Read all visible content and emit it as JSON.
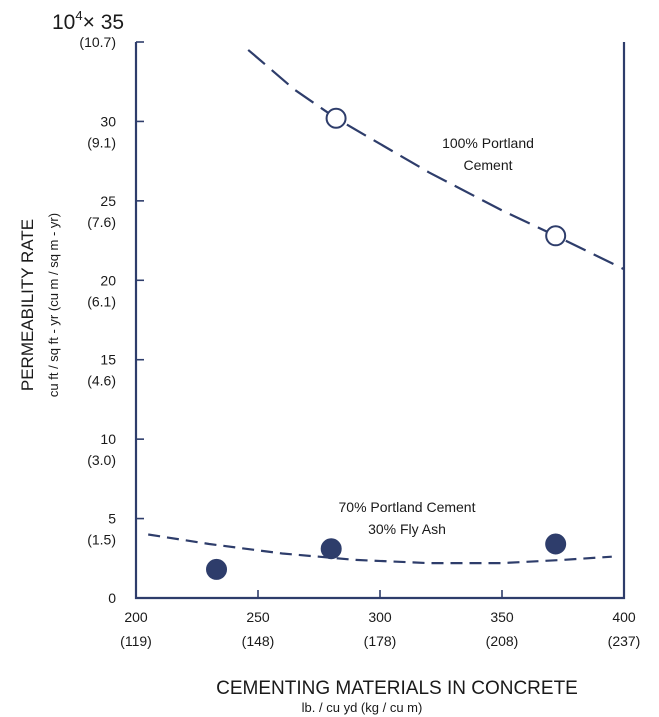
{
  "chart_data": {
    "type": "scatter",
    "multiplier_label": {
      "base": "10",
      "exponent": "4",
      "suffix": "× 35"
    },
    "ylabel": "PERMEABILITY RATE",
    "ylabel_sub": "cu ft / sq ft - yr (cu m / sq m - yr)",
    "xlabel": "CEMENTING MATERIALS IN CONCRETE",
    "xlabel_sub": "lb. / cu yd (kg / cu m)",
    "xlim": [
      200,
      400
    ],
    "ylim": [
      0,
      35
    ],
    "x_ticks": [
      {
        "value": 200,
        "label": "200",
        "metric": "(119)"
      },
      {
        "value": 250,
        "label": "250",
        "metric": "(148)"
      },
      {
        "value": 300,
        "label": "300",
        "metric": "(178)"
      },
      {
        "value": 350,
        "label": "350",
        "metric": "(208)"
      },
      {
        "value": 400,
        "label": "400",
        "metric": "(237)"
      }
    ],
    "y_ticks": [
      {
        "value": 0,
        "label": "0",
        "metric": ""
      },
      {
        "value": 5,
        "label": "5",
        "metric": "(1.5)"
      },
      {
        "value": 10,
        "label": "10",
        "metric": "(3.0)"
      },
      {
        "value": 15,
        "label": "15",
        "metric": "(4.6)"
      },
      {
        "value": 20,
        "label": "20",
        "metric": "(6.1)"
      },
      {
        "value": 25,
        "label": "25",
        "metric": "(7.6)"
      },
      {
        "value": 30,
        "label": "30",
        "metric": "(9.1)"
      },
      {
        "value": 35,
        "label": "",
        "metric": "(10.7)"
      }
    ],
    "series": [
      {
        "name": "100% Portland Cement",
        "label_lines": [
          "100% Portland",
          "Cement"
        ],
        "marker": "open-circle",
        "points": [
          {
            "x": 282,
            "y": 30.2
          },
          {
            "x": 372,
            "y": 22.8
          }
        ],
        "fit": [
          {
            "x": 246,
            "y": 34.5
          },
          {
            "x": 265,
            "y": 32.0
          },
          {
            "x": 282,
            "y": 30.2
          },
          {
            "x": 320,
            "y": 26.8
          },
          {
            "x": 350,
            "y": 24.4
          },
          {
            "x": 372,
            "y": 22.8
          },
          {
            "x": 400,
            "y": 20.7
          }
        ]
      },
      {
        "name": "70% Portland Cement 30% Fly Ash",
        "label_lines": [
          "70% Portland Cement",
          "30% Fly Ash"
        ],
        "marker": "filled-circle",
        "points": [
          {
            "x": 233,
            "y": 1.8
          },
          {
            "x": 280,
            "y": 3.1
          },
          {
            "x": 372,
            "y": 3.4
          }
        ],
        "fit": [
          {
            "x": 205,
            "y": 4.0
          },
          {
            "x": 230,
            "y": 3.4
          },
          {
            "x": 260,
            "y": 2.8
          },
          {
            "x": 290,
            "y": 2.4
          },
          {
            "x": 320,
            "y": 2.2
          },
          {
            "x": 350,
            "y": 2.2
          },
          {
            "x": 375,
            "y": 2.4
          },
          {
            "x": 395,
            "y": 2.6
          }
        ]
      }
    ],
    "colors": {
      "series": "#2e3d6b",
      "axis": "#2e3d6b",
      "text": "#1a1a1a"
    },
    "grid": false,
    "legend": "none"
  }
}
